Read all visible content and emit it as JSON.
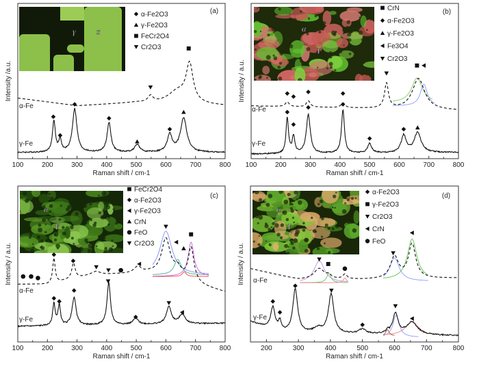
{
  "chart_data": [
    {
      "type": "line",
      "panel_label": "(a)",
      "xlabel": "Raman shift / cm-1",
      "ylabel": "Intensity /a.u.",
      "xlim": [
        100,
        800
      ],
      "xticks": [
        100,
        200,
        300,
        400,
        500,
        600,
        700,
        800
      ],
      "ylim": [
        0,
        100
      ],
      "inset": {
        "style": "green-black",
        "labels": [
          "γ",
          "α"
        ]
      },
      "legend": [
        {
          "symbol": "diamond",
          "label": "α-Fe2O3"
        },
        {
          "symbol": "triangle-up",
          "label": "γ-Fe2O3"
        },
        {
          "symbol": "square",
          "label": "FeCr2O4"
        },
        {
          "symbol": "triangle-down",
          "label": "Cr2O3"
        }
      ],
      "series": [
        {
          "name": "α-Fe",
          "style": "dashed",
          "baseline": [
            [
              100,
              39
            ],
            [
              300,
              34
            ],
            [
              500,
              36
            ],
            [
              800,
              34
            ]
          ],
          "peaks": [
            [
              548,
              4,
              10
            ],
            [
              640,
              8,
              40
            ],
            [
              680,
              24,
              14
            ]
          ]
        },
        {
          "name": "γ-Fe",
          "style": "solid",
          "baseline": [
            [
              100,
              4
            ],
            [
              800,
              4
            ]
          ],
          "peaks": [
            [
              222,
              20,
              6
            ],
            [
              243,
              8,
              5
            ],
            [
              292,
              28,
              9
            ],
            [
              408,
              19,
              8
            ],
            [
              503,
              5,
              10
            ],
            [
              613,
              11,
              10
            ],
            [
              660,
              22,
              13
            ]
          ]
        }
      ],
      "fits": [],
      "markers": [
        {
          "symbol": "diamond",
          "x": 220,
          "y": 27
        },
        {
          "symbol": "diamond",
          "x": 243,
          "y": 15
        },
        {
          "symbol": "diamond",
          "x": 292,
          "y": 35
        },
        {
          "symbol": "diamond",
          "x": 408,
          "y": 26
        },
        {
          "symbol": "diamond",
          "x": 613,
          "y": 19
        },
        {
          "symbol": "triangle-up",
          "x": 503,
          "y": 11
        },
        {
          "symbol": "triangle-up",
          "x": 660,
          "y": 30
        },
        {
          "symbol": "square",
          "x": 677,
          "y": 71
        },
        {
          "symbol": "triangle-down",
          "x": 548,
          "y": 46
        }
      ]
    },
    {
      "type": "line",
      "panel_label": "(b)",
      "xlabel": "Raman shift / cm-1",
      "ylabel": "Intensity / a.u.",
      "xlim": [
        100,
        800
      ],
      "xticks": [
        100,
        200,
        300,
        400,
        500,
        600,
        700,
        800
      ],
      "ylim": [
        0,
        100
      ],
      "inset": {
        "style": "green-red",
        "labels": [
          "α",
          "γ"
        ]
      },
      "legend": [
        {
          "symbol": "square",
          "label": "CrN"
        },
        {
          "symbol": "diamond",
          "label": "α-Fe2O3"
        },
        {
          "symbol": "triangle-up",
          "label": "γ-Fe2O3"
        },
        {
          "symbol": "triangle-left",
          "label": "Fe3O4"
        },
        {
          "symbol": "triangle-down",
          "label": "Cr2O3"
        }
      ],
      "series": [
        {
          "name": "α-Fe",
          "style": "dashed",
          "baseline": [
            [
              100,
              34
            ],
            [
              800,
              31
            ]
          ],
          "peaks": [
            [
              222,
              3,
              8
            ],
            [
              293,
              4,
              8
            ],
            [
              410,
              3,
              8
            ],
            [
              557,
              16,
              8
            ],
            [
              665,
              20,
              25
            ]
          ]
        },
        {
          "name": "γ-Fe",
          "style": "solid",
          "baseline": [
            [
              100,
              3
            ],
            [
              800,
              4
            ]
          ],
          "peaks": [
            [
              222,
              23,
              5
            ],
            [
              243,
              11,
              5
            ],
            [
              293,
              25,
              8
            ],
            [
              410,
              28,
              6
            ],
            [
              500,
              6,
              8
            ],
            [
              615,
              11,
              10
            ],
            [
              662,
              13,
              14
            ]
          ]
        }
      ],
      "fits": [
        {
          "color": "#80c860",
          "center": 660,
          "height": 16,
          "width": 22,
          "base": 36,
          "range": [
            578,
            712
          ]
        },
        {
          "color": "#8c9cff",
          "center": 683,
          "height": 14,
          "width": 14,
          "base": 34,
          "range": [
            578,
            720
          ]
        }
      ],
      "markers": [
        {
          "symbol": "square",
          "x": 660,
          "y": 60
        },
        {
          "symbol": "triangle-left",
          "x": 683,
          "y": 60
        },
        {
          "symbol": "triangle-down",
          "x": 557,
          "y": 55
        },
        {
          "symbol": "diamond",
          "x": 222,
          "y": 42
        },
        {
          "symbol": "diamond",
          "x": 243,
          "y": 40
        },
        {
          "symbol": "diamond",
          "x": 293,
          "y": 43
        },
        {
          "symbol": "diamond",
          "x": 410,
          "y": 42
        },
        {
          "symbol": "diamond",
          "x": 222,
          "y": 30
        },
        {
          "symbol": "diamond",
          "x": 243,
          "y": 22
        },
        {
          "symbol": "diamond",
          "x": 293,
          "y": 33
        },
        {
          "symbol": "diamond",
          "x": 410,
          "y": 35
        },
        {
          "symbol": "diamond",
          "x": 500,
          "y": 13
        },
        {
          "symbol": "diamond",
          "x": 615,
          "y": 19
        },
        {
          "symbol": "triangle-up",
          "x": 662,
          "y": 20
        }
      ]
    },
    {
      "type": "line",
      "panel_label": "(c)",
      "xlabel": "Raman shift / cm-1",
      "ylabel": "Intensity / a.u.",
      "xlim": [
        100,
        800
      ],
      "xticks": [
        100,
        200,
        300,
        400,
        500,
        600,
        700,
        800
      ],
      "ylim": [
        0,
        100
      ],
      "inset": {
        "style": "dark-green",
        "labels": [
          "α",
          "γ"
        ]
      },
      "legend": [
        {
          "symbol": "square",
          "label": "FeCr2O4"
        },
        {
          "symbol": "diamond",
          "label": "α-Fe2O3"
        },
        {
          "symbol": "triangle-left",
          "label": "γ-Fe2O3"
        },
        {
          "symbol": "triangle-up",
          "label": "CrN"
        },
        {
          "symbol": "circle",
          "label": "FeO"
        },
        {
          "symbol": "triangle-down",
          "label": "Cr2O3"
        }
      ],
      "series": [
        {
          "name": "α-Fe",
          "style": "dashed",
          "baseline": [
            [
              100,
              37
            ],
            [
              200,
              37
            ],
            [
              350,
              43
            ],
            [
              550,
              44
            ],
            [
              800,
              32
            ]
          ],
          "peaks": [
            [
              222,
              16,
              5
            ],
            [
              288,
              10,
              7
            ],
            [
              365,
              2,
              15
            ],
            [
              505,
              4,
              15
            ],
            [
              600,
              24,
              18
            ],
            [
              640,
              6,
              15
            ],
            [
              685,
              22,
              12
            ]
          ]
        },
        {
          "name": "γ-Fe",
          "style": "solid",
          "baseline": [
            [
              100,
              10
            ],
            [
              800,
              12
            ]
          ],
          "peaks": [
            [
              222,
              14,
              5
            ],
            [
              240,
              13,
              5
            ],
            [
              290,
              18,
              8
            ],
            [
              407,
              27,
              7
            ],
            [
              498,
              4,
              10
            ],
            [
              610,
              11,
              10
            ],
            [
              655,
              6,
              12
            ]
          ]
        }
      ],
      "fits": [
        {
          "color": "#7f8cff",
          "center": 600,
          "height": 28,
          "width": 25,
          "base": 43,
          "range": [
            555,
            745
          ]
        },
        {
          "color": "#40b080",
          "center": 640,
          "height": 10,
          "width": 14,
          "base": 43,
          "range": [
            555,
            745
          ]
        },
        {
          "color": "#d060e0",
          "center": 685,
          "height": 22,
          "width": 12,
          "base": 42,
          "range": [
            555,
            745
          ]
        },
        {
          "color": "#f04040",
          "center": 662,
          "height": 3,
          "width": 8,
          "base": 42,
          "range": [
            555,
            745
          ]
        }
      ],
      "markers": [
        {
          "symbol": "circle",
          "x": 118,
          "y": 42
        },
        {
          "symbol": "circle",
          "x": 145,
          "y": 42
        },
        {
          "symbol": "circle",
          "x": 168,
          "y": 41
        },
        {
          "symbol": "circle",
          "x": 448,
          "y": 46
        },
        {
          "symbol": "diamond",
          "x": 222,
          "y": 56
        },
        {
          "symbol": "diamond",
          "x": 287,
          "y": 52
        },
        {
          "symbol": "diamond",
          "x": 222,
          "y": 28
        },
        {
          "symbol": "diamond",
          "x": 240,
          "y": 26
        },
        {
          "symbol": "diamond",
          "x": 290,
          "y": 33
        },
        {
          "symbol": "diamond",
          "x": 498,
          "y": 16
        },
        {
          "symbol": "triangle-down",
          "x": 365,
          "y": 48
        },
        {
          "symbol": "triangle-down",
          "x": 406,
          "y": 46
        },
        {
          "symbol": "triangle-down",
          "x": 405,
          "y": 39
        },
        {
          "symbol": "triangle-down",
          "x": 600,
          "y": 74
        },
        {
          "symbol": "triangle-down",
          "x": 610,
          "y": 25
        },
        {
          "symbol": "triangle-left",
          "x": 635,
          "y": 64
        },
        {
          "symbol": "triangle-left",
          "x": 510,
          "y": 50
        },
        {
          "symbol": "triangle-left",
          "x": 655,
          "y": 19
        },
        {
          "symbol": "triangle-up",
          "x": 660,
          "y": 60
        },
        {
          "symbol": "square",
          "x": 685,
          "y": 69
        }
      ]
    },
    {
      "type": "line",
      "panel_label": "(d)",
      "xlabel": "Raman shift / cm-1",
      "ylabel": "Intensity / a.u.",
      "xlim": [
        150,
        800
      ],
      "xticks": [
        200,
        300,
        400,
        500,
        600,
        700,
        800
      ],
      "ylim": [
        0,
        100
      ],
      "inset": {
        "style": "green-orange",
        "labels": [
          "α",
          "γ"
        ]
      },
      "legend": [
        {
          "symbol": "diamond",
          "label": "α-Fe2O3"
        },
        {
          "symbol": "square",
          "label": "γ-Fe2O3"
        },
        {
          "symbol": "triangle-down",
          "label": "Cr2O3"
        },
        {
          "symbol": "triangle-left",
          "label": "CrN"
        },
        {
          "symbol": "circle",
          "label": "FeO"
        }
      ],
      "series": [
        {
          "name": "α-Fe",
          "style": "dashed",
          "baseline": [
            [
              150,
              47
            ],
            [
              300,
              40
            ],
            [
              500,
              40
            ],
            [
              800,
              41
            ]
          ],
          "peaks": [
            [
              365,
              7,
              20
            ],
            [
              395,
              2,
              8
            ],
            [
              445,
              3,
              8
            ],
            [
              600,
              14,
              15
            ],
            [
              655,
              22,
              14
            ]
          ]
        },
        {
          "name": "γ-Fe",
          "style": "solid",
          "baseline": [
            [
              150,
              13
            ],
            [
              250,
              6
            ],
            [
              800,
              4
            ]
          ],
          "peaks": [
            [
              220,
              14,
              8
            ],
            [
              242,
              6,
              6
            ],
            [
              290,
              28,
              9
            ],
            [
              402,
              25,
              10
            ],
            [
              360,
              3,
              15
            ],
            [
              500,
              3,
              12
            ],
            [
              578,
              2,
              5
            ],
            [
              603,
              13,
              10
            ],
            [
              655,
              8,
              20
            ]
          ]
        }
      ],
      "fits": [
        {
          "color": "#c090e0",
          "center": 365,
          "height": 14,
          "width": 20,
          "base": 38,
          "range": [
            305,
            455
          ]
        },
        {
          "color": "#60c060",
          "center": 395,
          "height": 6,
          "width": 8,
          "base": 38,
          "range": [
            305,
            455
          ]
        },
        {
          "color": "#f08080",
          "center": 445,
          "height": 3,
          "width": 6,
          "base": 38,
          "range": [
            305,
            455
          ]
        },
        {
          "color": "#8c9cff",
          "center": 600,
          "height": 15,
          "width": 18,
          "base": 39,
          "range": [
            565,
            705
          ]
        },
        {
          "color": "#60c050",
          "center": 655,
          "height": 26,
          "width": 18,
          "base": 40,
          "range": [
            565,
            705
          ]
        },
        {
          "color": "#8c9cff",
          "center": 605,
          "height": 14,
          "width": 12,
          "base": 3,
          "range": [
            565,
            675
          ]
        },
        {
          "color": "#f08080",
          "center": 655,
          "height": 9,
          "width": 25,
          "base": 4,
          "range": [
            565,
            700
          ]
        },
        {
          "color": "#a05040",
          "center": 578,
          "height": 4,
          "width": 6,
          "base": 4,
          "range": [
            565,
            600
          ]
        }
      ],
      "markers": [
        {
          "symbol": "triangle-down",
          "x": 365,
          "y": 53
        },
        {
          "symbol": "triangle-down",
          "x": 403,
          "y": 33
        },
        {
          "symbol": "triangle-down",
          "x": 596,
          "y": 57
        },
        {
          "symbol": "triangle-down",
          "x": 603,
          "y": 23
        },
        {
          "symbol": "square",
          "x": 393,
          "y": 50
        },
        {
          "symbol": "circle",
          "x": 445,
          "y": 47
        },
        {
          "symbol": "triangle-left",
          "x": 655,
          "y": 70
        },
        {
          "symbol": "triangle-left",
          "x": 655,
          "y": 15
        },
        {
          "symbol": "diamond",
          "x": 220,
          "y": 26
        },
        {
          "symbol": "diamond",
          "x": 242,
          "y": 19
        },
        {
          "symbol": "diamond",
          "x": 290,
          "y": 36
        },
        {
          "symbol": "diamond",
          "x": 500,
          "y": 11
        }
      ]
    }
  ]
}
